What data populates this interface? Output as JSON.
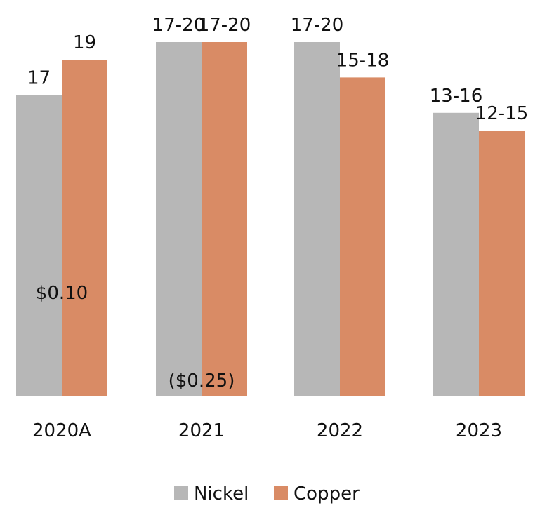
{
  "chart_data": {
    "type": "bar",
    "categories": [
      "2020A",
      "2021",
      "2022",
      "2023"
    ],
    "series": [
      {
        "name": "Nickel",
        "color": "#b7b7b7",
        "values": [
          17,
          20,
          20,
          16
        ],
        "labels": [
          "17",
          "17-20",
          "17-20",
          "13-16"
        ]
      },
      {
        "name": "Copper",
        "color": "#d98b65",
        "values": [
          19,
          20,
          18,
          15
        ],
        "labels": [
          "19",
          "17-20",
          "15-18",
          "12-15"
        ]
      }
    ],
    "annotations": [
      {
        "category": "2020A",
        "text": "$0.10"
      },
      {
        "category": "2021",
        "text": "($0.25)"
      }
    ],
    "ylim": [
      0,
      20
    ],
    "grid": false,
    "legend_position": "bottom"
  }
}
